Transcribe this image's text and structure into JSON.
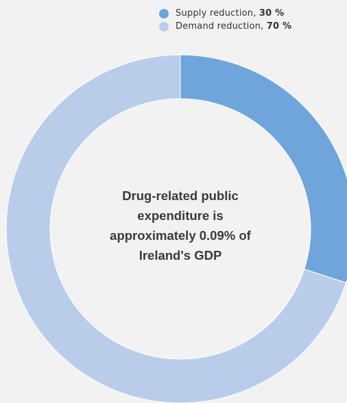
{
  "colors": {
    "background": "#f2f2f2",
    "supply": "#6fa5db",
    "demand": "#b9cdeb"
  },
  "legend": [
    {
      "label": "Supply reduction,",
      "value": "30 %",
      "color": "#6fa5db"
    },
    {
      "label": "Demand reduction,",
      "value": "70 %",
      "color": "#b9cdeb"
    }
  ],
  "center_text": {
    "lines": [
      "Drug-related public",
      "expenditure is",
      "approximately 0.09% of",
      "Ireland's GDP"
    ]
  },
  "chart_data": {
    "type": "pie",
    "donut": true,
    "categories": [
      "Supply reduction",
      "Demand reduction"
    ],
    "values": [
      30,
      70
    ],
    "unit": "%",
    "start": "top",
    "direction": "clockwise",
    "legend_position": "top-right",
    "title": "",
    "xlabel": "",
    "ylabel": ""
  }
}
